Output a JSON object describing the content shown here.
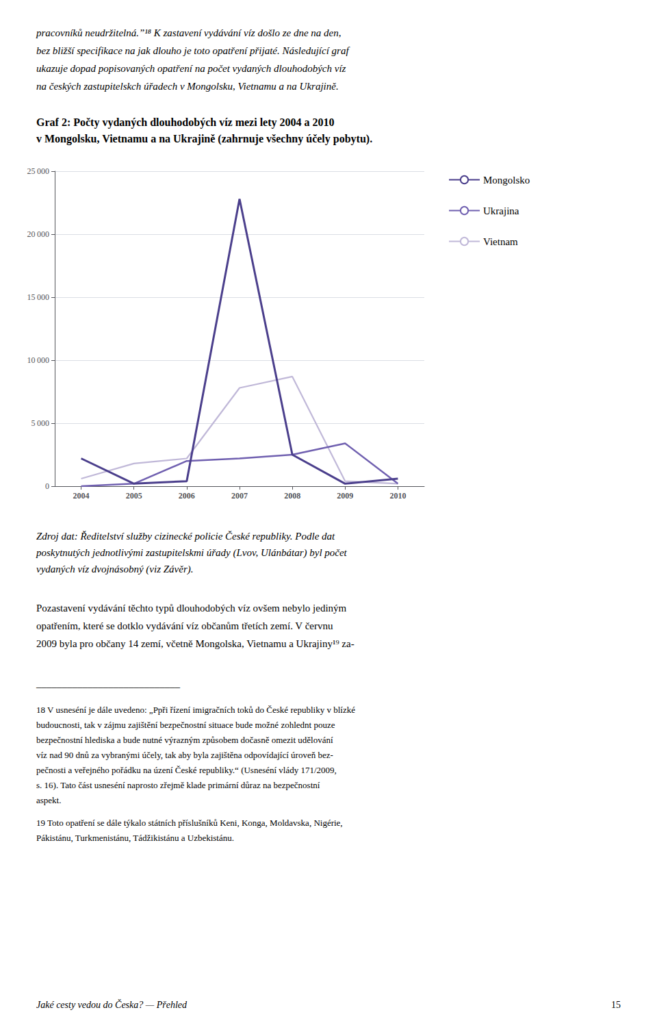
{
  "chart_data": {
    "type": "line",
    "title": [
      "Graf 2: Počty vydaných dlouhodobých víz mezi lety 2004 a 2010",
      "v Mongolsku, Vietnamu a na Ukrajině (zahrnuje všechny účely pobytu)."
    ],
    "x": [
      2004,
      2005,
      2006,
      2007,
      2008,
      2009,
      2010
    ],
    "series": [
      {
        "name": "Mongolsko",
        "color": "#4b3f8c",
        "values": [
          2200,
          200,
          400,
          22800,
          2500,
          200,
          600
        ]
      },
      {
        "name": "Ukrajina",
        "color": "#7060b0",
        "values": [
          0,
          200,
          2000,
          2200,
          2500,
          3400,
          200
        ]
      },
      {
        "name": "Vietnam",
        "color": "#c0b8d8",
        "values": [
          600,
          1800,
          2200,
          7800,
          8700,
          400,
          200
        ]
      }
    ],
    "xlim": [
      2003.5,
      2010.5
    ],
    "xticks": [
      2004,
      2005,
      2006,
      2007,
      2008,
      2009,
      2010
    ],
    "ylim": [
      0,
      25000
    ],
    "yticks": [
      0,
      {
        "value": 5000,
        "label": "5 000"
      },
      {
        "value": 10000,
        "label": "10 000"
      },
      {
        "value": 15000,
        "label": "15 000"
      },
      {
        "value": 20000,
        "label": "20 000"
      },
      {
        "value": 25000,
        "label": "25 000"
      }
    ],
    "grid": true,
    "legend": "right",
    "annotations": [
      [
        "pracovníků neudržitelná.”¹⁸ K zastavení vydávání víz došlo ze dne na den,",
        "bez bližší specifikace na jak dlouho je toto opatření přijaté. Následující graf",
        "ukazuje dopad popisovaných opatření na počet vydaných dlouhodobých víz",
        "na českých zastupitelskch úřadech v Mongolsku, Vietnamu a na Ukrajině."
      ],
      [
        "Zdroj dat: Ředitelství služby cizinecké policie České republiky. Podle dat",
        "poskytnutých jednotlivými zastupitelskmi úřady (Lvov, Ulánbátar) byl počet",
        "vydaných víz dvojnásobný (viz Závěr)."
      ],
      [
        "Pozastavení vydávání těchto typů dlouhodobých víz ovšem nebylo jediným",
        "opatřením, které se dotklo vydávání víz občanům třetích zemí. V červnu",
        "2009 byla pro občany 14 zemí, včetně Mongolska, Vietnamu a Ukrajiny¹⁹ za-"
      ],
      [
        "____________________________"
      ],
      [
        "18 V usneséní je dále uvedeno: „Ppři řízení imigračních toků do České republiky v blízké",
        "budoucnosti, tak v zájmu zajištění bezpečnostní situace bude možné zohlednt pouze",
        "bezpečnostní hlediska a bude nutné výrazným způsobem dočasně omezit udělování",
        "víz nad 90 dnů za vybranými účely, tak aby byla zajištěna odpovídající úroveň bez-",
        "pečnosti a veřejného pořádku na úzení České republiky.“ (Usneséní vlády 171/2009,",
        "s. 16). Tato část usneséní naprosto zřejmě klade primární důraz na bezpečnostní",
        "aspekt."
      ],
      [
        "19 Toto opatření se dále týkalo státních příslušníků Keni, Konga, Moldavska, Nigérie,",
        "Pákistánu, Turkmenistánu, Tádžikistánu a Uzbekistánu."
      ],
      [
        "Jaké cesty vedou do Česka? — Přehled"
      ],
      [
        "15"
      ]
    ]
  }
}
